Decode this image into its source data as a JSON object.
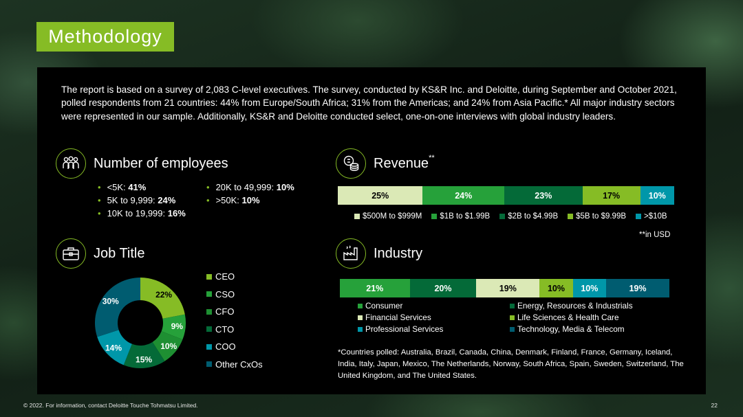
{
  "title": "Methodology",
  "intro": "The report is based on a survey of 2,083 C-level executives. The survey, conducted by KS&R Inc. and Deloitte, during September and October 2021, polled respondents from 21 countries: 44% from Europe/South Africa; 31% from the Americas; and 24% from Asia Pacific.* All major industry sectors were represented in our sample. Additionally, KS&R and Deloitte conducted select, one-on-one interviews with global industry leaders.",
  "employees": {
    "title": "Number of employees",
    "items": [
      {
        "label": "<5K: ",
        "value": "41%"
      },
      {
        "label": "5K to 9,999: ",
        "value": "24%"
      },
      {
        "label": "10K to 19,999: ",
        "value": "16%"
      },
      {
        "label": "20K to 49,999: ",
        "value": "10%"
      },
      {
        "label": ">50K: ",
        "value": "10%"
      }
    ]
  },
  "revenue": {
    "title": "Revenue",
    "title_sup": "**",
    "note": "**in USD"
  },
  "industry": {
    "title": "Industry"
  },
  "job_title": {
    "title": "Job Title"
  },
  "colors": {
    "accent": "#86bc25",
    "light": "#dbe9b6",
    "green": "#26a13a",
    "teal_dark": "#046a38",
    "lime": "#86bc25",
    "cyan": "#0097a9",
    "navy_teal": "#005c70",
    "mid_green": "#1e8f32"
  },
  "chart_data": [
    {
      "type": "bar",
      "title": "Revenue",
      "stacked": true,
      "orientation": "horizontal",
      "series": [
        {
          "name": "$500M to $999M",
          "value": 25,
          "label": "25%",
          "color": "#dbe9b6"
        },
        {
          "name": "$1B to $1.99B",
          "value": 24,
          "label": "24%",
          "color": "#26a13a"
        },
        {
          "name": "$2B to $4.99B",
          "value": 23,
          "label": "23%",
          "color": "#046a38"
        },
        {
          "name": "$5B to $9.99B",
          "value": 17,
          "label": "17%",
          "color": "#86bc25"
        },
        {
          "name": ">$10B",
          "value": 10,
          "label": "10%",
          "color": "#0097a9"
        }
      ],
      "legend": "bottom"
    },
    {
      "type": "bar",
      "title": "Industry",
      "stacked": true,
      "orientation": "horizontal",
      "series": [
        {
          "name": "Consumer",
          "value": 21,
          "label": "21%",
          "color": "#26a13a"
        },
        {
          "name": "Energy, Resources & Industrials",
          "value": 20,
          "label": "20%",
          "color": "#046a38"
        },
        {
          "name": "Financial Services",
          "value": 19,
          "label": "19%",
          "color": "#dbe9b6"
        },
        {
          "name": "Life Sciences & Health Care",
          "value": 10,
          "label": "10%",
          "color": "#86bc25"
        },
        {
          "name": "Professional Services",
          "value": 10,
          "label": "10%",
          "color": "#0097a9"
        },
        {
          "name": "Technology, Media & Telecom",
          "value": 19,
          "label": "19%",
          "color": "#005c70"
        }
      ],
      "legend": "bottom"
    },
    {
      "type": "pie",
      "title": "Job Title",
      "donut": true,
      "slices": [
        {
          "name": "CEO",
          "value": 22,
          "label": "22%",
          "color": "#86bc25"
        },
        {
          "name": "CSO",
          "value": 9,
          "label": "9%",
          "color": "#26a13a"
        },
        {
          "name": "CFO",
          "value": 10,
          "label": "10%",
          "color": "#1e8f32"
        },
        {
          "name": "CTO",
          "value": 15,
          "label": "15%",
          "color": "#046a38"
        },
        {
          "name": "COO",
          "value": 14,
          "label": "14%",
          "color": "#0097a9"
        },
        {
          "name": "Other CxOs",
          "value": 30,
          "label": "30%",
          "color": "#005c70"
        }
      ],
      "legend": "right"
    }
  ],
  "footnote": "*Countries polled: Australia, Brazil, Canada, China, Denmark, Finland, France, Germany, Iceland, India, Italy, Japan, Mexico, The Netherlands, Norway, South Africa, Spain, Sweden, Switzerland, The United Kingdom, and The United States.",
  "footer": "© 2022. For information, contact Deloitte Touche Tohmatsu Limited.",
  "page_number": "22"
}
